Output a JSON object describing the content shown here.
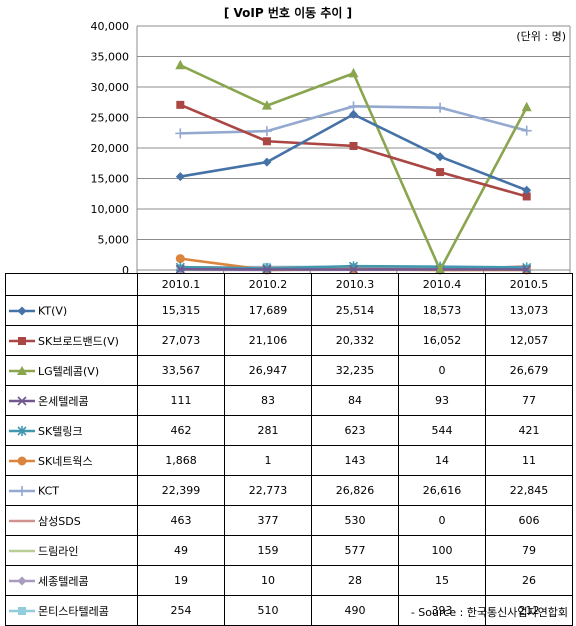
{
  "title": "[ VoIP 번호 이동 추이 ]",
  "unit": "(단위 : 명)",
  "source": "- Source : 한국통신사업자연합회",
  "chart_data": {
    "type": "line",
    "categories": [
      "2010.1",
      "2010.2",
      "2010.3",
      "2010.4",
      "2010.5"
    ],
    "ylim": [
      0,
      40000
    ],
    "yticks": [
      0,
      5000,
      10000,
      15000,
      20000,
      25000,
      30000,
      35000,
      40000
    ],
    "ytick_labels": [
      "0",
      "5,000",
      "10,000",
      "15,000",
      "20,000",
      "25,000",
      "30,000",
      "35,000",
      "40,000"
    ],
    "grid": "horizontal",
    "legend": "data-table",
    "series": [
      {
        "name": "KT(V)",
        "color": "#4572A7",
        "marker": "diamond",
        "values": [
          15315,
          17689,
          25514,
          18573,
          13073
        ],
        "labels": [
          "15,315",
          "17,689",
          "25,514",
          "18,573",
          "13,073"
        ]
      },
      {
        "name": "SK브로드밴드(V)",
        "color": "#AA4643",
        "marker": "square",
        "values": [
          27073,
          21106,
          20332,
          16052,
          12057
        ],
        "labels": [
          "27,073",
          "21,106",
          "20,332",
          "16,052",
          "12,057"
        ]
      },
      {
        "name": "LG텔레콤(V)",
        "color": "#89A54E",
        "marker": "triangle",
        "values": [
          33567,
          26947,
          32235,
          0,
          26679
        ],
        "labels": [
          "33,567",
          "26,947",
          "32,235",
          "0",
          "26,679"
        ]
      },
      {
        "name": "온세텔레콤",
        "color": "#71588F",
        "marker": "x",
        "values": [
          111,
          83,
          84,
          93,
          77
        ],
        "labels": [
          "111",
          "83",
          "84",
          "93",
          "77"
        ]
      },
      {
        "name": "SK텔링크",
        "color": "#4198AF",
        "marker": "star",
        "values": [
          462,
          281,
          623,
          544,
          421
        ],
        "labels": [
          "462",
          "281",
          "623",
          "544",
          "421"
        ]
      },
      {
        "name": "SK네트웍스",
        "color": "#DB843D",
        "marker": "circle",
        "values": [
          1868,
          1,
          143,
          14,
          11
        ],
        "labels": [
          "1,868",
          "1",
          "143",
          "14",
          "11"
        ]
      },
      {
        "name": "KCT",
        "color": "#93A9CF",
        "marker": "plus",
        "values": [
          22399,
          22773,
          26826,
          26616,
          22845
        ],
        "labels": [
          "22,399",
          "22,773",
          "26,826",
          "26,616",
          "22,845"
        ]
      },
      {
        "name": "삼성SDS",
        "color": "#D19392",
        "marker": "none",
        "values": [
          463,
          377,
          530,
          0,
          606
        ],
        "labels": [
          "463",
          "377",
          "530",
          "0",
          "606"
        ]
      },
      {
        "name": "드림라인",
        "color": "#B9CD96",
        "marker": "none",
        "values": [
          49,
          159,
          577,
          100,
          79
        ],
        "labels": [
          "49",
          "159",
          "577",
          "100",
          "79"
        ]
      },
      {
        "name": "세종텔레콤",
        "color": "#A99BBD",
        "marker": "diamond",
        "values": [
          19,
          10,
          28,
          15,
          26
        ],
        "labels": [
          "19",
          "10",
          "28",
          "15",
          "26"
        ]
      },
      {
        "name": "몬티스타텔레콤",
        "color": "#92CDDC",
        "marker": "square",
        "values": [
          254,
          510,
          490,
          393,
          212
        ],
        "labels": [
          "254",
          "510",
          "490",
          "393",
          "212"
        ]
      }
    ]
  }
}
